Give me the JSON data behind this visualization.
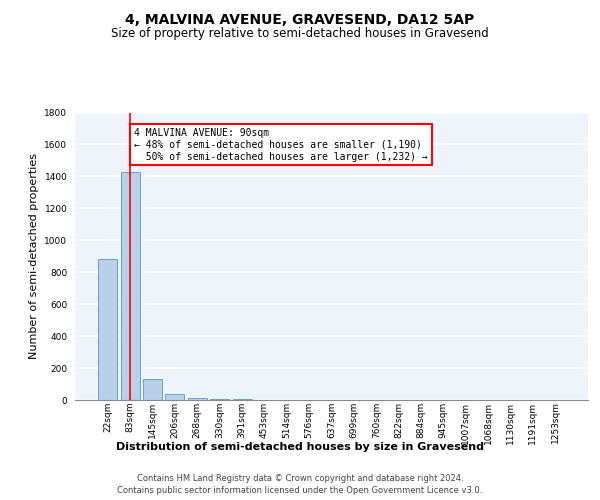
{
  "title": "4, MALVINA AVENUE, GRAVESEND, DA12 5AP",
  "subtitle": "Size of property relative to semi-detached houses in Gravesend",
  "xlabel": "Distribution of semi-detached houses by size in Gravesend",
  "ylabel": "Number of semi-detached properties",
  "footer_line1": "Contains HM Land Registry data © Crown copyright and database right 2024.",
  "footer_line2": "Contains public sector information licensed under the Open Government Licence v3.0.",
  "categories": [
    "22sqm",
    "83sqm",
    "145sqm",
    "206sqm",
    "268sqm",
    "330sqm",
    "391sqm",
    "453sqm",
    "514sqm",
    "576sqm",
    "637sqm",
    "699sqm",
    "760sqm",
    "822sqm",
    "884sqm",
    "945sqm",
    "1007sqm",
    "1068sqm",
    "1130sqm",
    "1191sqm",
    "1253sqm"
  ],
  "values": [
    880,
    1430,
    130,
    40,
    15,
    8,
    5,
    3,
    2,
    2,
    1,
    1,
    1,
    1,
    1,
    0,
    0,
    0,
    0,
    0,
    0
  ],
  "highlight_color": "#b8d0e8",
  "bar_edge_color": "#6aa0cc",
  "property_line_x": 1,
  "annotation_line1": "4 MALVINA AVENUE: 90sqm",
  "annotation_line2": "← 48% of semi-detached houses are smaller (1,190)",
  "annotation_line3": "  50% of semi-detached houses are larger (1,232) →",
  "ylim": [
    0,
    1800
  ],
  "yticks": [
    0,
    200,
    400,
    600,
    800,
    1000,
    1200,
    1400,
    1600,
    1800
  ],
  "background_color": "#eef4fb",
  "grid_color": "#ffffff",
  "title_fontsize": 10,
  "subtitle_fontsize": 8.5,
  "ylabel_fontsize": 8,
  "xlabel_fontsize": 8,
  "footer_fontsize": 6,
  "tick_fontsize": 6.5,
  "annotation_fontsize": 7
}
